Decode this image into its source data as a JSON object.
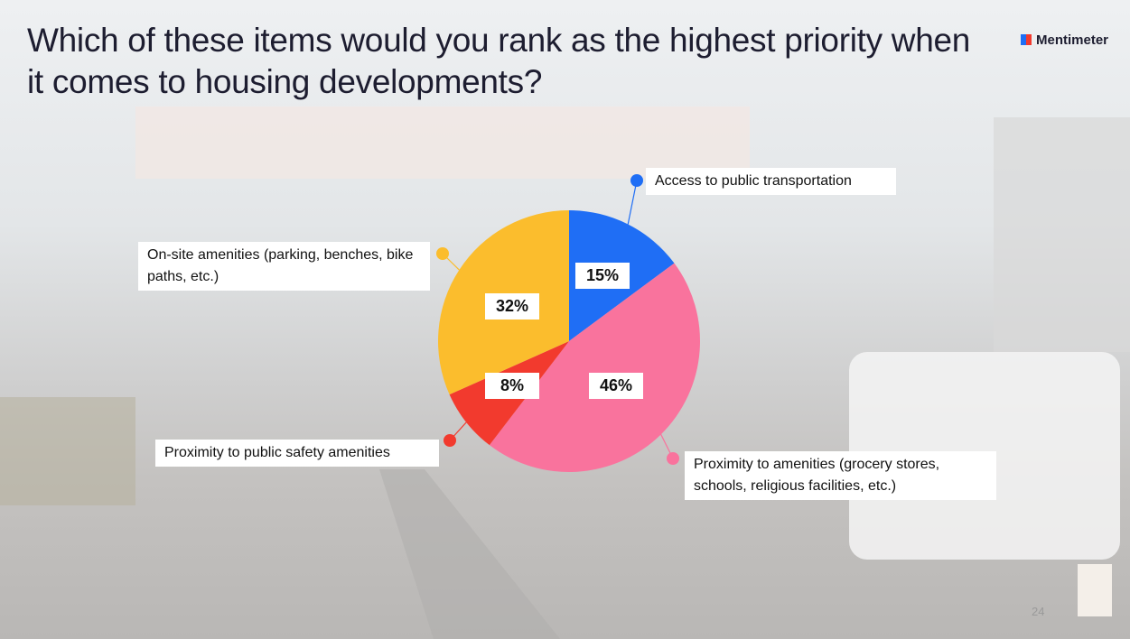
{
  "brand": "Mentimeter",
  "page_number": "24",
  "chart_data": {
    "type": "pie",
    "title": "Which of these items would you rank as the highest priority when it comes to housing developments?",
    "categories": [
      "Access to public transportation",
      "Proximity to amenities (grocery stores, schools, religious facilities, etc.)",
      "Proximity to public safety amenities",
      "On-site amenities (parking, benches, bike paths, etc.)"
    ],
    "values": [
      15,
      46,
      8,
      32
    ],
    "value_labels": [
      "15%",
      "46%",
      "8%",
      "32%"
    ],
    "colors": [
      "#1f6ef5",
      "#f9739d",
      "#f23a2e",
      "#fbbd2d"
    ]
  }
}
